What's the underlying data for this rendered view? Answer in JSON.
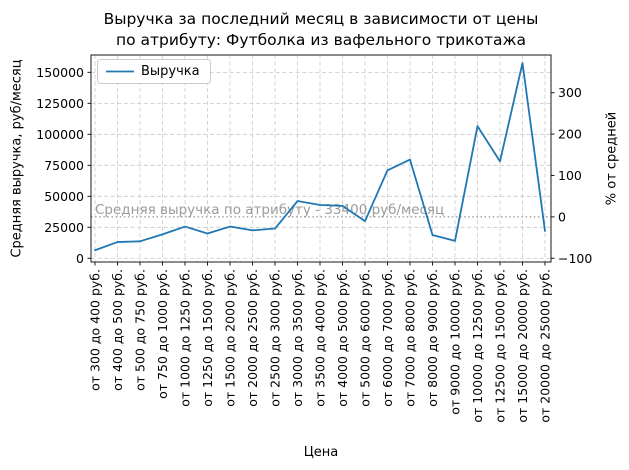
{
  "figure": {
    "title_line1": "Выручка за последний месяц в зависимости от цены",
    "title_line2": "по атрибуту: Футболка из вафельного трикотажа",
    "background": "#ffffff"
  },
  "chart_data": {
    "type": "line",
    "title": "Выручка за последний месяц в зависимости от цены по атрибуту: Футболка из вафельного трикотажа",
    "xlabel": "Цена",
    "ylabel_left": "Средняя выручка, руб/месяц",
    "ylabel_right": "% от средней",
    "grid": true,
    "legend_position": "upper left",
    "legend": {
      "label": "Выручка",
      "line_color": "#1f77b4"
    },
    "line_color": "#1f77b4",
    "grid_color": "#c9c9c9",
    "average_line": {
      "value": 33400,
      "label": "Средняя выручка по атрибуту - 33400 руб/месяц",
      "style": "dotted",
      "color": "#a6a6a6",
      "text_color": "#9b9b9b"
    },
    "categories": [
      "от 300 до 400 руб.",
      "от 400 до 500 руб.",
      "от 500 до 750 руб.",
      "от 750 до 1000 руб.",
      "от 1000 до 1250 руб.",
      "от 1250 до 1500 руб.",
      "от 1500 до 2000 руб.",
      "от 2000 до 2500 руб.",
      "от 2500 до 3000 руб.",
      "от 3000 до 3500 руб.",
      "от 3500 до 4000 руб.",
      "от 4000 до 5000 руб.",
      "от 5000 до 6000 руб.",
      "от 6000 до 7000 руб.",
      "от 7000 до 8000 руб.",
      "от 8000 до 9000 руб.",
      "от 9000 до 10000 руб.",
      "от 10000 до 12500 руб.",
      "от 12500 до 15000 руб.",
      "от 15000 до 20000 руб.",
      "от 20000 до 25000 руб."
    ],
    "series": [
      {
        "name": "Выручка",
        "values": [
          6500,
          13100,
          13700,
          19300,
          25600,
          20000,
          25600,
          22500,
          24000,
          46200,
          43000,
          42300,
          30000,
          71000,
          79600,
          18800,
          14000,
          106600,
          78200,
          157500,
          22000
        ]
      }
    ],
    "yaxis_left": {
      "ticks": [
        0,
        25000,
        50000,
        75000,
        100000,
        125000,
        150000
      ],
      "tick_labels": [
        "0",
        "25000",
        "50000",
        "75000",
        "100000",
        "125000",
        "150000"
      ],
      "lim": [
        -3000,
        164000
      ]
    },
    "yaxis_right": {
      "ticks": [
        -100,
        0,
        100,
        200,
        300
      ],
      "tick_labels": [
        "−100",
        "0",
        "100",
        "200",
        "300"
      ],
      "unit": "percent of average (0% = 33400 руб/месяц)"
    }
  }
}
